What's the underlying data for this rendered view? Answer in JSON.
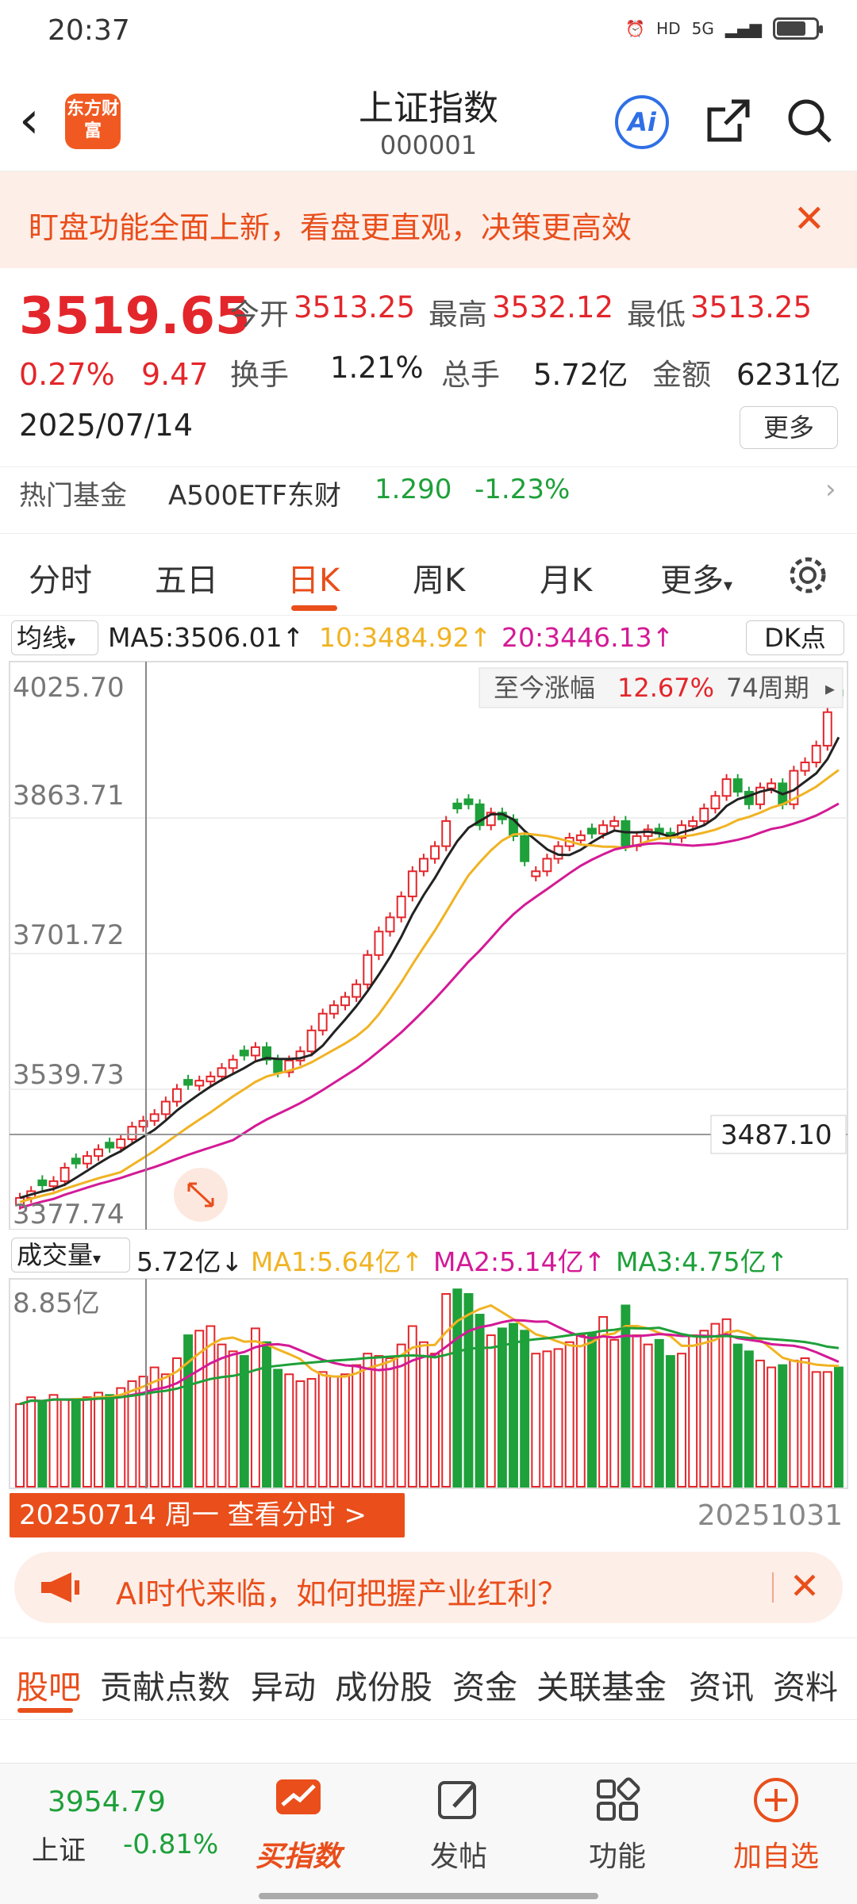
{
  "status": {
    "time": "20:37",
    "net": "5G",
    "hd": "HD"
  },
  "header": {
    "title": "上证指数",
    "code": "000001",
    "logo": "东方财富"
  },
  "banner": {
    "text": "盯盘功能全面上新，看盘更直观，决策更高效",
    "close": "✕"
  },
  "quote": {
    "price": "3519.65",
    "pct": "0.27%",
    "change": "9.47",
    "date": "2025/07/14",
    "open_label": "今开",
    "open": "3513.25",
    "high_label": "最高",
    "high": "3532.12",
    "low_label": "最低",
    "low": "3513.25",
    "turnover_label": "换手",
    "turnover": "1.21%",
    "vol_label": "总手",
    "vol": "5.72亿",
    "amount_label": "金额",
    "amount": "6231亿",
    "more": "更多"
  },
  "fund": {
    "label": "热门基金",
    "name": "A500ETF东财",
    "price": "1.290",
    "pct": "-1.23%"
  },
  "tabs": [
    "分时",
    "五日",
    "日K",
    "周K",
    "月K",
    "更多"
  ],
  "ma": {
    "selector": "均线",
    "ma5": "MA5:3506.01↑",
    "ma10": "10:3484.92↑",
    "ma20": "20:3446.13↑",
    "dk": "DK点"
  },
  "kinfo": {
    "label": "至今涨幅",
    "pct": "12.67%",
    "period": "74周期",
    "crosshair": "3487.10"
  },
  "chart_data": {
    "type": "candlestick",
    "ylim": [
      3377.74,
      4025.7
    ],
    "yticks": [
      "4025.70",
      "3863.71",
      "3701.72",
      "3539.73",
      "3377.74"
    ],
    "x_start": "20250714",
    "x_end": "20251031",
    "close_series": [
      3410,
      3418,
      3425,
      3430,
      3446,
      3451,
      3460,
      3468,
      3470,
      3480,
      3495,
      3502,
      3510,
      3525,
      3540,
      3545,
      3550,
      3555,
      3565,
      3575,
      3580,
      3590,
      3575,
      3560,
      3574,
      3585,
      3610,
      3630,
      3640,
      3650,
      3665,
      3700,
      3728,
      3745,
      3770,
      3800,
      3815,
      3830,
      3860,
      3875,
      3880,
      3855,
      3870,
      3862,
      3842,
      3812,
      3800,
      3815,
      3830,
      3840,
      3843,
      3845,
      3855,
      3860,
      3830,
      3842,
      3850,
      3845,
      3840,
      3855,
      3860,
      3875,
      3890,
      3910,
      3895,
      3880,
      3900,
      3905,
      3880,
      3920,
      3930,
      3950,
      3990,
      4010
    ],
    "up": [
      1,
      1,
      0,
      1,
      1,
      0,
      1,
      1,
      0,
      1,
      1,
      1,
      1,
      1,
      1,
      0,
      1,
      1,
      1,
      1,
      0,
      1,
      0,
      0,
      1,
      1,
      1,
      1,
      1,
      1,
      1,
      1,
      1,
      1,
      1,
      1,
      1,
      1,
      1,
      0,
      0,
      0,
      1,
      0,
      0,
      0,
      1,
      1,
      1,
      1,
      1,
      0,
      1,
      1,
      0,
      1,
      1,
      0,
      0,
      1,
      1,
      1,
      1,
      1,
      0,
      0,
      1,
      1,
      0,
      1,
      1,
      1,
      1,
      0
    ]
  },
  "volume": {
    "selector": "成交量",
    "current": "5.72亿↓",
    "ma1": "MA1:5.64亿↑",
    "ma2": "MA2:5.14亿↑",
    "ma3": "MA3:4.75亿↑",
    "max": "8.85亿",
    "values": [
      3.6,
      3.9,
      3.7,
      4.0,
      3.8,
      3.7,
      3.9,
      4.1,
      4.0,
      4.3,
      4.6,
      4.8,
      5.2,
      4.9,
      5.6,
      6.6,
      6.8,
      7.0,
      6.2,
      5.9,
      5.7,
      6.9,
      6.3,
      5.1,
      4.9,
      4.6,
      4.7,
      5.0,
      4.8,
      4.9,
      5.3,
      5.8,
      5.7,
      5.6,
      6.2,
      7.0,
      6.3,
      5.8,
      8.4,
      8.6,
      8.4,
      7.5,
      6.6,
      6.9,
      7.1,
      6.8,
      5.8,
      5.9,
      6.0,
      6.3,
      6.6,
      6.7,
      7.4,
      6.4,
      7.9,
      6.6,
      6.2,
      6.4,
      5.7,
      5.8,
      6.6,
      6.8,
      7.1,
      7.3,
      6.2,
      5.9,
      5.5,
      5.2,
      5.3,
      5.5,
      5.6,
      5.0,
      5.0,
      5.2
    ]
  },
  "datebar": {
    "button": "20250714 周一 查看分时 >",
    "end": "20251031"
  },
  "ai_banner": {
    "text": "AI时代来临，如何把握产业红利？"
  },
  "subtabs": [
    "股吧",
    "贡献点数",
    "异动",
    "成份股",
    "资金",
    "关联基金",
    "资讯",
    "资料"
  ],
  "bottom": {
    "index_value": "3954.79",
    "index_name": "上证",
    "index_pct": "-0.81%",
    "nav": [
      "买指数",
      "发帖",
      "功能",
      "加自选"
    ]
  },
  "colors": {
    "up": "#e3262b",
    "down": "#1ea03a",
    "accent": "#e94e1b",
    "ma5": "#222222",
    "ma10": "#f0b323",
    "ma20": "#d31a96"
  }
}
